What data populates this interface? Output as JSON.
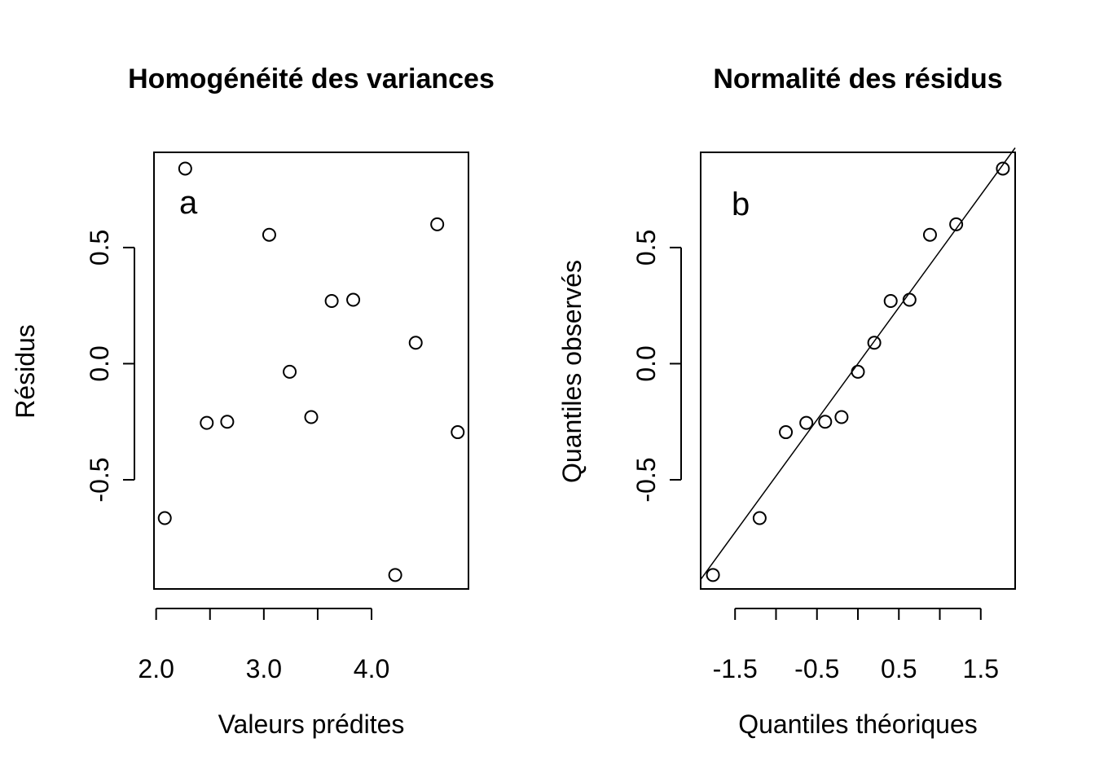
{
  "chart_data": [
    {
      "type": "scatter",
      "title": "Homogénéité des variances",
      "xlabel": "Valeurs prédites",
      "ylabel": "Résidus",
      "panel_label": "a",
      "xlim": [
        1.98,
        4.9
      ],
      "ylim": [
        -0.97,
        0.91
      ],
      "xticks": [
        2.0,
        2.5,
        3.0,
        3.5,
        4.0
      ],
      "xtick_labels": [
        "2.0",
        "",
        "3.0",
        "",
        "4.0"
      ],
      "yticks": [
        -0.5,
        0.0,
        0.5
      ],
      "ytick_labels": [
        "-0.5",
        "0.0",
        "0.5"
      ],
      "x": [
        2.08,
        2.27,
        2.47,
        2.66,
        3.05,
        3.24,
        3.44,
        3.63,
        3.83,
        4.22,
        4.41,
        4.61,
        4.8
      ],
      "y": [
        -0.665,
        0.84,
        -0.255,
        -0.25,
        0.555,
        -0.035,
        -0.23,
        0.27,
        0.275,
        -0.91,
        0.09,
        0.6,
        -0.295
      ]
    },
    {
      "type": "scatter",
      "title": "Normalité des résidus",
      "xlabel": "Quantiles théoriques",
      "ylabel": "Quantiles observés",
      "panel_label": "b",
      "xlim": [
        -1.92,
        1.92
      ],
      "ylim": [
        -0.97,
        0.91
      ],
      "xticks": [
        -1.5,
        -1.0,
        -0.5,
        0.0,
        0.5,
        1.0,
        1.5
      ],
      "xtick_labels": [
        "-1.5",
        "",
        "-0.5",
        "",
        "0.5",
        "",
        "1.5"
      ],
      "yticks": [
        -0.5,
        0.0,
        0.5
      ],
      "ytick_labels": [
        "-0.5",
        "0.0",
        "0.5"
      ],
      "x": [
        -1.77,
        -1.2,
        -0.88,
        -0.63,
        -0.4,
        -0.2,
        0.0,
        0.2,
        0.4,
        0.63,
        0.88,
        1.2,
        1.77
      ],
      "y": [
        -0.91,
        -0.665,
        -0.295,
        -0.255,
        -0.25,
        -0.23,
        -0.035,
        0.09,
        0.27,
        0.275,
        0.555,
        0.6,
        0.84
      ],
      "reference_line": {
        "intercept": 0.0,
        "slope": 0.484
      }
    }
  ]
}
